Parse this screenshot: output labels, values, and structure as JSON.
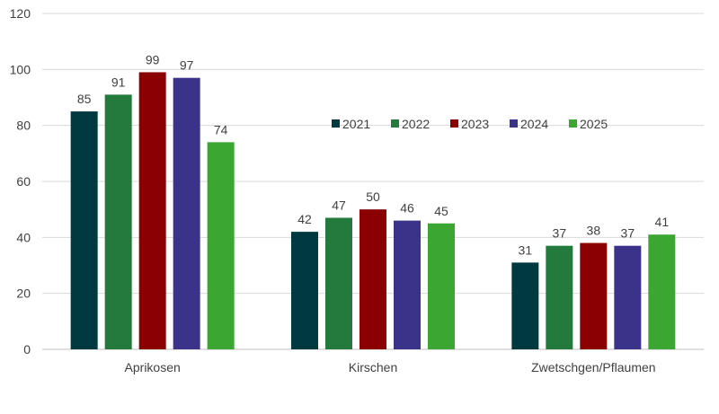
{
  "chart_data": {
    "type": "bar",
    "categories": [
      "Aprikosen",
      "Kirschen",
      "Zwetschgen/Pflaumen"
    ],
    "series": [
      {
        "name": "2021",
        "values": [
          85,
          42,
          31
        ],
        "color": "#003A40"
      },
      {
        "name": "2022",
        "values": [
          91,
          47,
          37
        ],
        "color": "#237A3C"
      },
      {
        "name": "2023",
        "values": [
          99,
          50,
          38
        ],
        "color": "#8B0000"
      },
      {
        "name": "2024",
        "values": [
          97,
          46,
          37
        ],
        "color": "#3A3389"
      },
      {
        "name": "2025",
        "values": [
          74,
          45,
          41
        ],
        "color": "#3CA632"
      }
    ],
    "ylim": [
      0,
      120
    ],
    "yticks": [
      0,
      20,
      40,
      60,
      80,
      100,
      120
    ],
    "grid": true,
    "legend_position": "inside-center-right",
    "data_labels": true
  }
}
